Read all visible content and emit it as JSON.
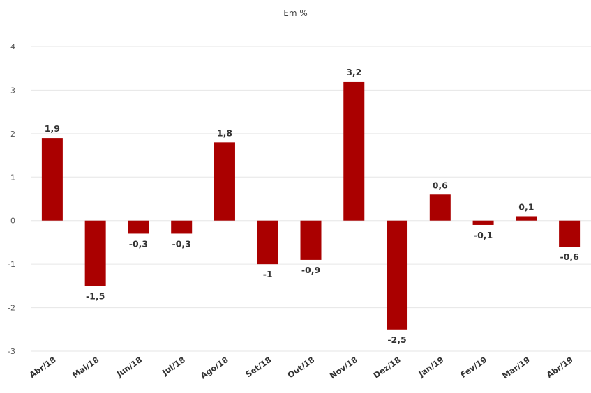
{
  "chart_data": {
    "type": "bar",
    "title": "Em %",
    "categories": [
      "Abr/18",
      "Mai/18",
      "Jun/18",
      "Jul/18",
      "Ago/18",
      "Set/18",
      "Out/18",
      "Nov/18",
      "Dez/18",
      "Jan/19",
      "Fev/19",
      "Mar/19",
      "Abr/19"
    ],
    "values": [
      1.9,
      -1.5,
      -0.3,
      -0.3,
      1.8,
      -1,
      -0.9,
      3.2,
      -2.5,
      0.6,
      -0.1,
      0.1,
      -0.6
    ],
    "value_labels": [
      "1,9",
      "-1,5",
      "-0,3",
      "-0,3",
      "1,8",
      "-1",
      "-0,9",
      "3,2",
      "-2,5",
      "0,6",
      "-0,1",
      "0,1",
      "-0,6"
    ],
    "yticks": [
      4,
      3,
      2,
      1,
      0,
      -1,
      -2,
      -3
    ],
    "ylim": [
      -3,
      4
    ],
    "grid": true,
    "bar_color": "#aa0000"
  }
}
